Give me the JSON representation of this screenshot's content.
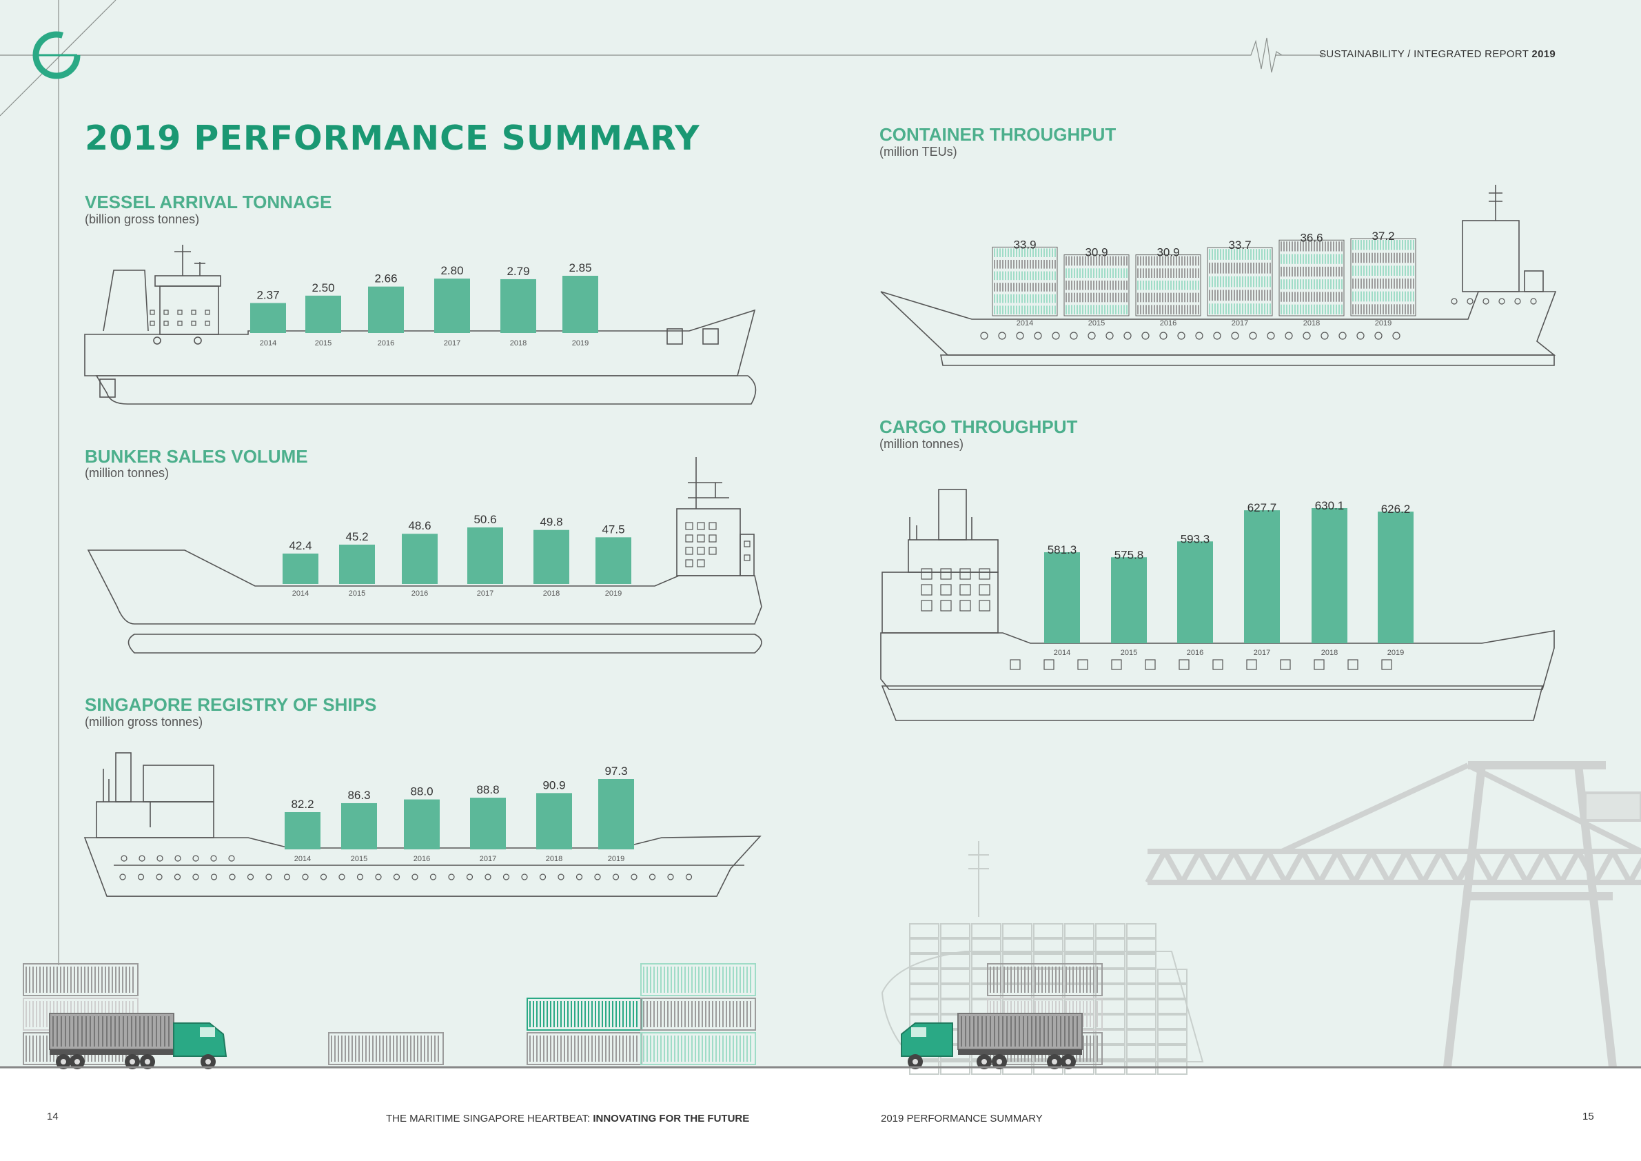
{
  "header": {
    "report_prefix": "SUSTAINABILITY / INTEGRATED REPORT",
    "report_year": "2019"
  },
  "page_title": "2019 PERFORMANCE SUMMARY",
  "footer": {
    "left_page_number": "14",
    "left_text_plain": "THE MARITIME SINGAPORE HEARTBEAT:",
    "left_text_bold": "INNOVATING FOR THE FUTURE",
    "right_text": "2019 PERFORMANCE SUMMARY",
    "right_page_number": "15"
  },
  "colors": {
    "background": "#e9f2ef",
    "bar": "#5cb899",
    "title": "#1a9873",
    "section_title": "#4caf8c",
    "line": "#555555",
    "container_grey": "#9c9c9c",
    "container_mint": "#9fdcc7",
    "truck_cab": "#2aa985"
  },
  "chart_data": [
    {
      "id": "vessel",
      "type": "bar",
      "title": "VESSEL ARRIVAL TONNAGE",
      "unit": "(billion gross tonnes)",
      "categories": [
        "2014",
        "2015",
        "2016",
        "2017",
        "2018",
        "2019"
      ],
      "values": [
        2.37,
        2.5,
        2.66,
        2.8,
        2.79,
        2.85
      ],
      "labels": [
        "2.37",
        "2.50",
        "2.66",
        "2.80",
        "2.79",
        "2.85"
      ]
    },
    {
      "id": "bunker",
      "type": "bar",
      "title": "BUNKER SALES VOLUME",
      "unit": "(million tonnes)",
      "categories": [
        "2014",
        "2015",
        "2016",
        "2017",
        "2018",
        "2019"
      ],
      "values": [
        42.4,
        45.2,
        48.6,
        50.6,
        49.8,
        47.5
      ],
      "labels": [
        "42.4",
        "45.2",
        "48.6",
        "50.6",
        "49.8",
        "47.5"
      ]
    },
    {
      "id": "registry",
      "type": "bar",
      "title": "SINGAPORE REGISTRY OF SHIPS",
      "unit": "(million gross tonnes)",
      "categories": [
        "2014",
        "2015",
        "2016",
        "2017",
        "2018",
        "2019"
      ],
      "values": [
        82.2,
        86.3,
        88.0,
        88.8,
        90.9,
        97.3
      ],
      "labels": [
        "82.2",
        "86.3",
        "88.0",
        "88.8",
        "90.9",
        "97.3"
      ]
    },
    {
      "id": "container",
      "type": "bar",
      "title": "CONTAINER THROUGHPUT",
      "unit": "(million TEUs)",
      "categories": [
        "2014",
        "2015",
        "2016",
        "2017",
        "2018",
        "2019"
      ],
      "values": [
        33.9,
        30.9,
        30.9,
        33.7,
        36.6,
        37.2
      ],
      "labels": [
        "33.9",
        "30.9",
        "30.9",
        "33.7",
        "36.6",
        "37.2"
      ]
    },
    {
      "id": "cargo",
      "type": "bar",
      "title": "CARGO THROUGHPUT",
      "unit": "(million tonnes)",
      "categories": [
        "2014",
        "2015",
        "2016",
        "2017",
        "2018",
        "2019"
      ],
      "values": [
        581.3,
        575.8,
        593.3,
        627.7,
        630.1,
        626.2
      ],
      "labels": [
        "581.3",
        "575.8",
        "593.3",
        "627.7",
        "630.1",
        "626.2"
      ]
    }
  ]
}
